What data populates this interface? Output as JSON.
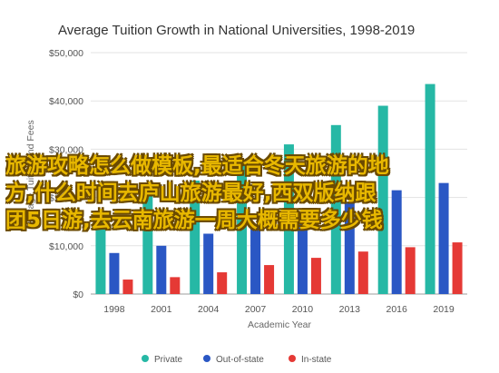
{
  "chart_data": {
    "type": "bar",
    "title": "Average Tuition Growth in National Universities, 1998-2019",
    "xlabel": "Academic Year",
    "ylabel": "Average Tuition and Fees",
    "categories": [
      "1998",
      "2001",
      "2004",
      "2007",
      "2010",
      "2013",
      "2016",
      "2019"
    ],
    "series": [
      {
        "name": "Private",
        "color": "#26b8a5",
        "values": [
          17000,
          21000,
          23500,
          27000,
          31000,
          35000,
          39000,
          43500
        ]
      },
      {
        "name": "Out-of-state",
        "color": "#2a57c4",
        "values": [
          8500,
          10000,
          12500,
          14500,
          17000,
          19000,
          21500,
          23000
        ]
      },
      {
        "name": "In-state",
        "color": "#e53935",
        "values": [
          3000,
          3500,
          4500,
          6000,
          7500,
          8800,
          9700,
          10700
        ]
      }
    ],
    "ylim": [
      0,
      50000
    ],
    "yticks": [
      "$0",
      "$10,000",
      "$20,000",
      "$30,000",
      "$40,000",
      "$50,000"
    ],
    "grid": true,
    "legend_position": "bottom"
  },
  "overlay": {
    "lines": [
      "旅游攻略怎么做模板,最适合冬天旅游的地",
      "方,什么时间去庐山旅游最好,西双版纳跟",
      "团5日游,去云南旅游一周大概需要多少钱"
    ]
  }
}
